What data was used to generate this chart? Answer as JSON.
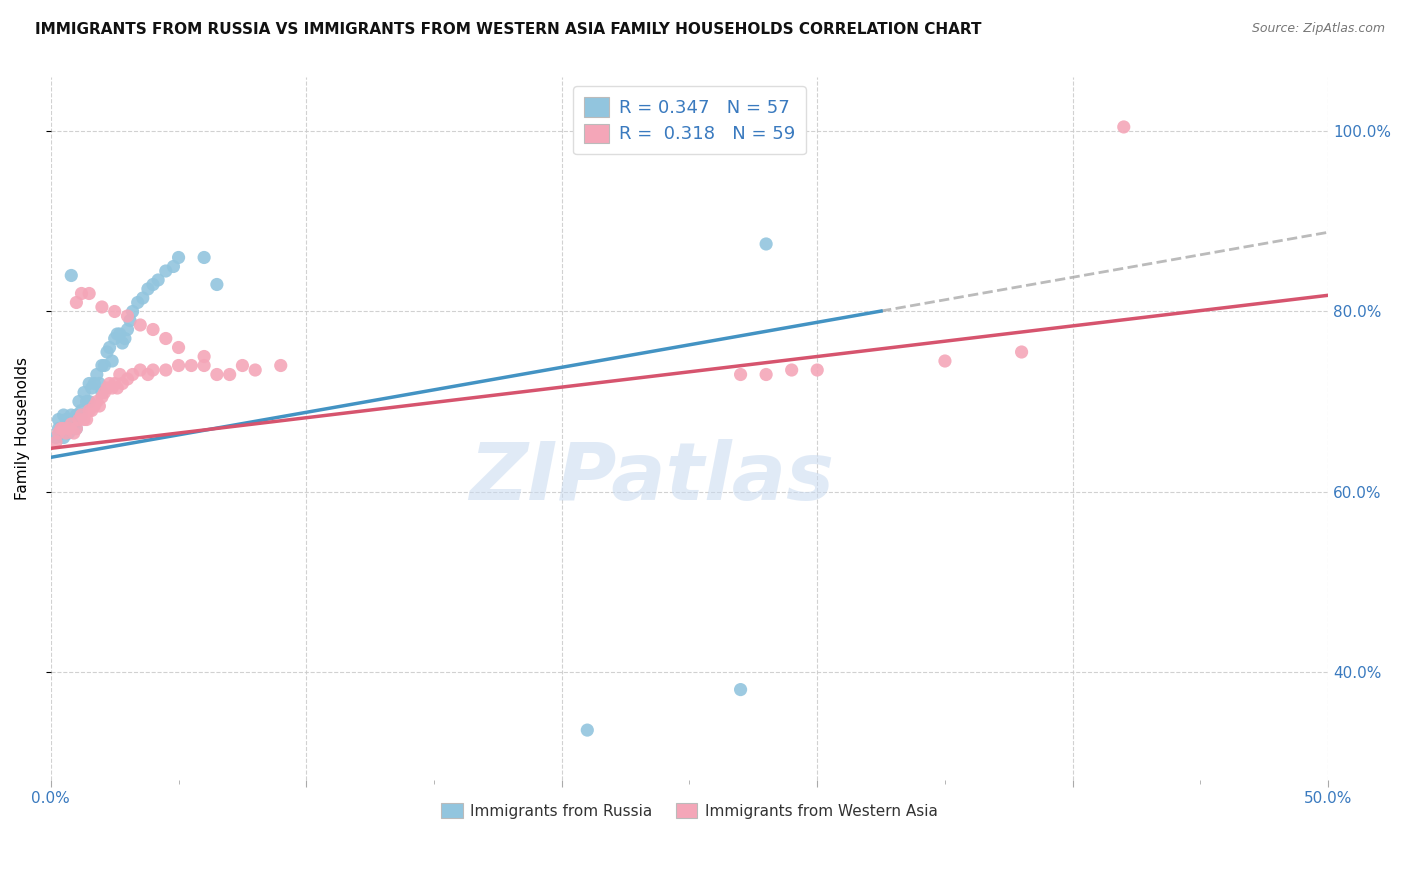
{
  "title": "IMMIGRANTS FROM RUSSIA VS IMMIGRANTS FROM WESTERN ASIA FAMILY HOUSEHOLDS CORRELATION CHART",
  "source": "Source: ZipAtlas.com",
  "ylabel": "Family Households",
  "legend_label_blue": "Immigrants from Russia",
  "legend_label_pink": "Immigrants from Western Asia",
  "legend_blue_r": "R = 0.347",
  "legend_blue_n": "N = 57",
  "legend_pink_r": "R = 0.318",
  "legend_pink_n": "N = 59",
  "blue_color": "#92c5de",
  "pink_color": "#f4a6b8",
  "trendline_blue": "#4393c3",
  "trendline_pink": "#d6546e",
  "trendline_gray": "#aaaaaa",
  "watermark": "ZIPatlas",
  "blue_scatter_x": [
    0.002,
    0.003,
    0.003,
    0.004,
    0.004,
    0.005,
    0.005,
    0.006,
    0.006,
    0.007,
    0.007,
    0.008,
    0.008,
    0.009,
    0.009,
    0.01,
    0.01,
    0.01,
    0.011,
    0.012,
    0.012,
    0.013,
    0.014,
    0.015,
    0.015,
    0.016,
    0.017,
    0.018,
    0.019,
    0.02,
    0.02,
    0.021,
    0.022,
    0.023,
    0.024,
    0.025,
    0.026,
    0.027,
    0.028,
    0.029,
    0.03,
    0.031,
    0.032,
    0.034,
    0.036,
    0.038,
    0.04,
    0.042,
    0.045,
    0.048,
    0.05,
    0.06,
    0.065,
    0.008,
    0.28,
    0.27,
    0.21
  ],
  "blue_scatter_y": [
    0.66,
    0.67,
    0.68,
    0.665,
    0.67,
    0.685,
    0.66,
    0.67,
    0.68,
    0.665,
    0.675,
    0.67,
    0.685,
    0.67,
    0.675,
    0.68,
    0.67,
    0.685,
    0.7,
    0.69,
    0.685,
    0.71,
    0.7,
    0.72,
    0.7,
    0.715,
    0.72,
    0.73,
    0.72,
    0.74,
    0.71,
    0.74,
    0.755,
    0.76,
    0.745,
    0.77,
    0.775,
    0.775,
    0.765,
    0.77,
    0.78,
    0.79,
    0.8,
    0.81,
    0.815,
    0.825,
    0.83,
    0.835,
    0.845,
    0.85,
    0.86,
    0.86,
    0.83,
    0.84,
    0.875,
    0.38,
    0.335
  ],
  "pink_scatter_x": [
    0.002,
    0.003,
    0.004,
    0.005,
    0.006,
    0.007,
    0.008,
    0.009,
    0.01,
    0.011,
    0.012,
    0.013,
    0.014,
    0.015,
    0.016,
    0.017,
    0.018,
    0.019,
    0.02,
    0.021,
    0.022,
    0.023,
    0.024,
    0.025,
    0.026,
    0.027,
    0.028,
    0.03,
    0.032,
    0.035,
    0.038,
    0.04,
    0.045,
    0.05,
    0.055,
    0.06,
    0.065,
    0.07,
    0.075,
    0.08,
    0.09,
    0.01,
    0.012,
    0.015,
    0.02,
    0.025,
    0.03,
    0.035,
    0.04,
    0.045,
    0.05,
    0.06,
    0.27,
    0.28,
    0.29,
    0.3,
    0.35,
    0.38,
    0.42
  ],
  "pink_scatter_y": [
    0.655,
    0.665,
    0.67,
    0.67,
    0.665,
    0.67,
    0.675,
    0.665,
    0.67,
    0.68,
    0.685,
    0.68,
    0.68,
    0.69,
    0.69,
    0.695,
    0.7,
    0.695,
    0.705,
    0.71,
    0.715,
    0.72,
    0.715,
    0.72,
    0.715,
    0.73,
    0.72,
    0.725,
    0.73,
    0.735,
    0.73,
    0.735,
    0.735,
    0.74,
    0.74,
    0.74,
    0.73,
    0.73,
    0.74,
    0.735,
    0.74,
    0.81,
    0.82,
    0.82,
    0.805,
    0.8,
    0.795,
    0.785,
    0.78,
    0.77,
    0.76,
    0.75,
    0.73,
    0.73,
    0.735,
    0.735,
    0.745,
    0.755,
    1.005
  ],
  "xlim": [
    0.0,
    0.5
  ],
  "ylim": [
    0.28,
    1.06
  ],
  "x_ticks_major": [
    0.0,
    0.1,
    0.2,
    0.3,
    0.4,
    0.5
  ],
  "x_ticks_minor": [
    0.05,
    0.15,
    0.25,
    0.35,
    0.45
  ],
  "x_tick_labels_show": [
    0.0,
    0.5
  ],
  "y_ticks": [
    0.4,
    0.6,
    0.8,
    1.0
  ],
  "blue_trend_intercept": 0.638,
  "blue_trend_slope": 0.5,
  "blue_trend_solid_end": 0.325,
  "pink_trend_intercept": 0.648,
  "pink_trend_slope": 0.34,
  "title_fontsize": 11,
  "source_fontsize": 9,
  "axis_label_fontsize": 11,
  "tick_fontsize": 11
}
